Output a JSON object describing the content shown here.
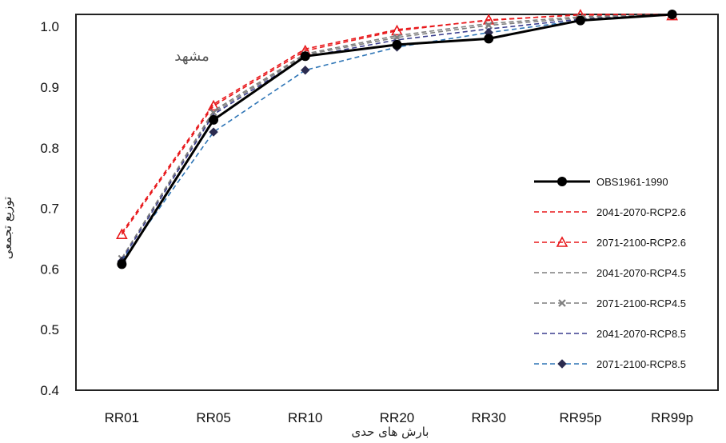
{
  "chart_data": {
    "type": "line",
    "title": "",
    "annotation": "مشهد",
    "xlabel": "بارش های حدی",
    "ylabel": "توزیع تجمعی",
    "categories": [
      "RR01",
      "RR05",
      "RR10",
      "RR20",
      "RR30",
      "RR95p",
      "RR99p"
    ],
    "ylim": [
      0.4,
      1.02
    ],
    "yticks": [
      "0.4",
      "0.5",
      "0.6",
      "0.7",
      "0.8",
      "0.9",
      "1.0"
    ],
    "grid": false,
    "legend_position": "right",
    "series": [
      {
        "name": "OBS1961-1990",
        "color": "#000000",
        "dash": "solid",
        "marker": "circle",
        "values": [
          0.608,
          0.846,
          0.951,
          0.97,
          0.98,
          1.01,
          1.02
        ]
      },
      {
        "name": "2041-2070-RCP2.6",
        "color": "#e8191c",
        "dash": "dashed",
        "marker": "none",
        "values": [
          0.66,
          0.872,
          0.963,
          0.995,
          1.01,
          1.02,
          1.02
        ]
      },
      {
        "name": "2071-2100-RCP2.6",
        "color": "#e8191c",
        "dash": "dashed",
        "marker": "triangle",
        "values": [
          0.657,
          0.869,
          0.96,
          0.993,
          1.011,
          1.019,
          1.018
        ]
      },
      {
        "name": "2041-2070-RCP4.5",
        "color": "#7f7f7f",
        "dash": "dashed",
        "marker": "none",
        "values": [
          0.618,
          0.861,
          0.955,
          0.985,
          1.005,
          1.016,
          1.02
        ]
      },
      {
        "name": "2071-2100-RCP4.5",
        "color": "#7f7f7f",
        "dash": "dashed",
        "marker": "x",
        "values": [
          0.617,
          0.858,
          0.953,
          0.982,
          1.002,
          1.014,
          1.02
        ]
      },
      {
        "name": "2041-2070-RCP8.5",
        "color": "#3b3f8f",
        "dash": "dashed",
        "marker": "none",
        "values": [
          0.615,
          0.855,
          0.95,
          0.978,
          0.996,
          1.012,
          1.02
        ]
      },
      {
        "name": "2071-2100-RCP8.5",
        "color": "#2e75b6",
        "dash": "dashed",
        "marker": "diamond",
        "values": [
          0.613,
          0.826,
          0.928,
          0.966,
          0.99,
          1.01,
          1.02
        ]
      }
    ]
  }
}
